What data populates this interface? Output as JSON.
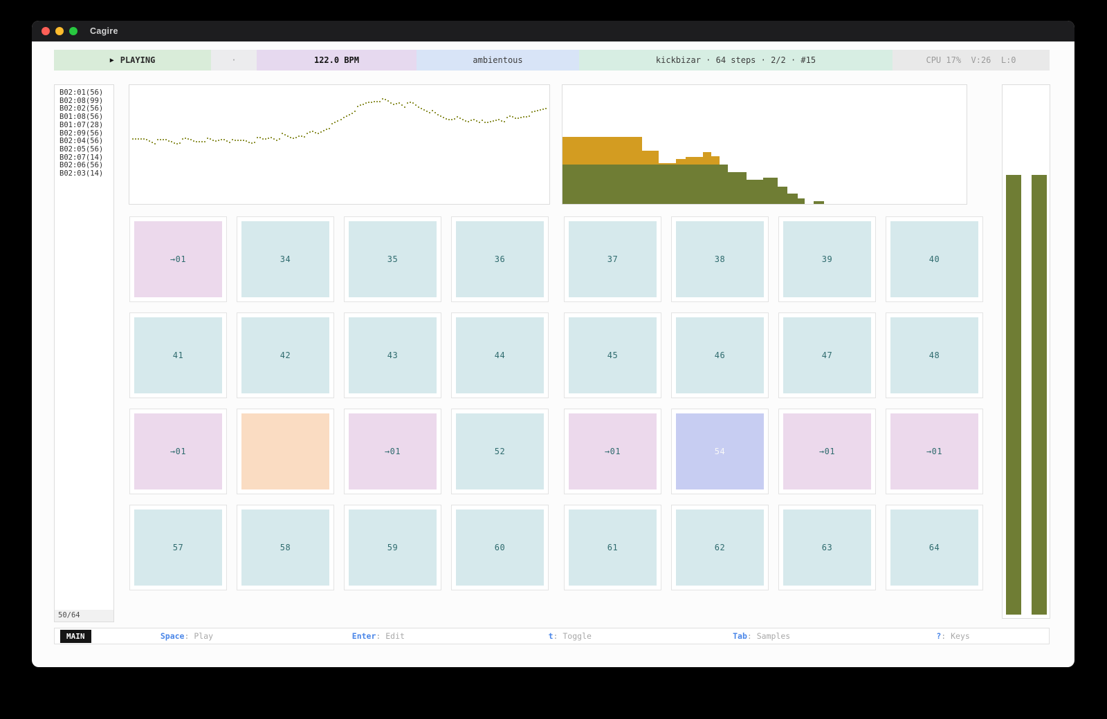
{
  "window": {
    "title": "Cagire"
  },
  "toolbar": {
    "play_glyph": "▶",
    "transport_label": "PLAYING",
    "separator": "·",
    "bpm": "122.0 BPM",
    "scene": "ambientous",
    "pattern_info": "kickbizar · 64 steps · 2/2 · #15",
    "stats": "CPU 17%  V:26  L:0"
  },
  "sidebar": {
    "items": [
      "B02:01(56)",
      "B02:08(99)",
      "B02:02(56)",
      "B01:08(56)",
      "B01:07(28)",
      "B02:09(56)",
      "B02:04(56)",
      "B02:05(56)",
      "B02:07(14)",
      "B02:06(56)",
      "B02:03(14)"
    ],
    "counter": "50/64"
  },
  "chart_data": [
    {
      "id": "sample-walk",
      "type": "scatter",
      "x_range": [
        0,
        1
      ],
      "y_range": [
        0,
        1
      ],
      "point_color": "#8f9335",
      "points": [
        [
          0,
          0.46
        ],
        [
          0.03,
          0.44
        ],
        [
          0.055,
          0.47
        ],
        [
          0.08,
          0.45
        ],
        [
          0.105,
          0.475
        ],
        [
          0.13,
          0.445
        ],
        [
          0.155,
          0.465
        ],
        [
          0.18,
          0.45
        ],
        [
          0.2,
          0.465
        ],
        [
          0.22,
          0.44
        ],
        [
          0.245,
          0.465
        ],
        [
          0.27,
          0.455
        ],
        [
          0.29,
          0.47
        ],
        [
          0.305,
          0.44
        ],
        [
          0.32,
          0.45
        ],
        [
          0.335,
          0.425
        ],
        [
          0.35,
          0.44
        ],
        [
          0.365,
          0.4
        ],
        [
          0.375,
          0.425
        ],
        [
          0.39,
          0.435
        ],
        [
          0.405,
          0.4
        ],
        [
          0.42,
          0.41
        ],
        [
          0.435,
          0.375
        ],
        [
          0.45,
          0.39
        ],
        [
          0.465,
          0.345
        ],
        [
          0.48,
          0.32
        ],
        [
          0.495,
          0.28
        ],
        [
          0.51,
          0.24
        ],
        [
          0.525,
          0.2
        ],
        [
          0.54,
          0.155
        ],
        [
          0.555,
          0.12
        ],
        [
          0.57,
          0.095
        ],
        [
          0.585,
          0.075
        ],
        [
          0.6,
          0.07
        ],
        [
          0.615,
          0.085
        ],
        [
          0.63,
          0.11
        ],
        [
          0.645,
          0.09
        ],
        [
          0.66,
          0.125
        ],
        [
          0.675,
          0.1
        ],
        [
          0.69,
          0.135
        ],
        [
          0.705,
          0.155
        ],
        [
          0.72,
          0.175
        ],
        [
          0.735,
          0.21
        ],
        [
          0.75,
          0.235
        ],
        [
          0.765,
          0.25
        ],
        [
          0.78,
          0.235
        ],
        [
          0.795,
          0.26
        ],
        [
          0.81,
          0.28
        ],
        [
          0.825,
          0.245
        ],
        [
          0.84,
          0.27
        ],
        [
          0.855,
          0.3
        ],
        [
          0.87,
          0.27
        ],
        [
          0.885,
          0.25
        ],
        [
          0.9,
          0.26
        ],
        [
          0.915,
          0.235
        ],
        [
          0.93,
          0.25
        ],
        [
          0.945,
          0.225
        ],
        [
          0.96,
          0.21
        ],
        [
          0.975,
          0.19
        ],
        [
          0.99,
          0.165
        ],
        [
          1,
          0.15
        ]
      ]
    },
    {
      "id": "length-histogram",
      "type": "bar",
      "stacked": true,
      "series_colors": {
        "base": "#6f7d34",
        "top": "#d39c21"
      },
      "bars": [
        {
          "x0": 0.0,
          "x1": 0.197,
          "base": 0.33,
          "top": 0.237
        },
        {
          "x0": 0.197,
          "x1": 0.238,
          "base": 0.33,
          "top": 0.116
        },
        {
          "x0": 0.238,
          "x1": 0.281,
          "base": 0.33,
          "top": 0.012
        },
        {
          "x0": 0.281,
          "x1": 0.304,
          "base": 0.33,
          "top": 0.046
        },
        {
          "x0": 0.304,
          "x1": 0.347,
          "base": 0.33,
          "top": 0.064
        },
        {
          "x0": 0.347,
          "x1": 0.369,
          "base": 0.33,
          "top": 0.104
        },
        {
          "x0": 0.369,
          "x1": 0.389,
          "base": 0.33,
          "top": 0.069
        },
        {
          "x0": 0.389,
          "x1": 0.41,
          "base": 0.33,
          "top": 0
        },
        {
          "x0": 0.41,
          "x1": 0.455,
          "base": 0.266,
          "top": 0
        },
        {
          "x0": 0.455,
          "x1": 0.496,
          "base": 0.202,
          "top": 0
        },
        {
          "x0": 0.496,
          "x1": 0.532,
          "base": 0.22,
          "top": 0
        },
        {
          "x0": 0.532,
          "x1": 0.556,
          "base": 0.145,
          "top": 0
        },
        {
          "x0": 0.556,
          "x1": 0.583,
          "base": 0.087,
          "top": 0
        },
        {
          "x0": 0.583,
          "x1": 0.6,
          "base": 0.046,
          "top": 0
        },
        {
          "x0": 0.6,
          "x1": 0.621,
          "base": 0,
          "top": 0
        },
        {
          "x0": 0.621,
          "x1": 0.647,
          "base": 0.023,
          "top": 0
        }
      ]
    }
  ],
  "grid": {
    "rows": [
      {
        "cells": [
          {
            "label": "→01",
            "type": "pink"
          },
          {
            "label": "34",
            "type": "cyan"
          },
          {
            "label": "35",
            "type": "cyan"
          },
          {
            "label": "36",
            "type": "cyan"
          },
          {
            "label": "37",
            "type": "cyan"
          },
          {
            "label": "38",
            "type": "cyan"
          },
          {
            "label": "39",
            "type": "cyan"
          },
          {
            "label": "40",
            "type": "cyan"
          }
        ]
      },
      {
        "cells": [
          {
            "label": "41",
            "type": "cyan"
          },
          {
            "label": "42",
            "type": "cyan"
          },
          {
            "label": "43",
            "type": "cyan"
          },
          {
            "label": "44",
            "type": "cyan"
          },
          {
            "label": "45",
            "type": "cyan"
          },
          {
            "label": "46",
            "type": "cyan"
          },
          {
            "label": "47",
            "type": "cyan"
          },
          {
            "label": "48",
            "type": "cyan"
          }
        ]
      },
      {
        "cells": [
          {
            "label": "→01",
            "type": "pink"
          },
          {
            "label": "",
            "type": "orange"
          },
          {
            "label": "→01",
            "type": "pink"
          },
          {
            "label": "52",
            "type": "cyan"
          },
          {
            "label": "→01",
            "type": "pink"
          },
          {
            "label": "54",
            "type": "periwinkle"
          },
          {
            "label": "→01",
            "type": "pink"
          },
          {
            "label": "→01",
            "type": "pink"
          }
        ]
      },
      {
        "cells": [
          {
            "label": "57",
            "type": "cyan"
          },
          {
            "label": "58",
            "type": "cyan"
          },
          {
            "label": "59",
            "type": "cyan"
          },
          {
            "label": "60",
            "type": "cyan"
          },
          {
            "label": "61",
            "type": "cyan"
          },
          {
            "label": "62",
            "type": "cyan"
          },
          {
            "label": "63",
            "type": "cyan"
          },
          {
            "label": "64",
            "type": "cyan"
          }
        ]
      }
    ]
  },
  "meters": {
    "levels": [
      0.825,
      0.825
    ]
  },
  "statusbar": {
    "mode": "MAIN",
    "shortcuts": [
      {
        "key": "Space",
        "label": "Play"
      },
      {
        "key": "Enter",
        "label": "Edit"
      },
      {
        "key": "t",
        "label": "Toggle"
      },
      {
        "key": "Tab",
        "label": "Samples"
      },
      {
        "key": "?",
        "label": "Keys"
      }
    ]
  },
  "colors": {
    "traffic_close": "#ff5f57",
    "traffic_min": "#febc2e",
    "traffic_zoom": "#28c840",
    "segment_green": "#d9ecd9",
    "segment_gray": "#ececee",
    "segment_purple": "#e6d9ef",
    "segment_blue": "#d8e4f7",
    "segment_mint": "#d7eee3",
    "segment_gray2": "#e9e9e9",
    "cell_cyan": "#d6e9ec",
    "cell_pink": "#ecd9ec",
    "cell_orange": "#fadcc2",
    "cell_periwinkle": "#c7cdf2",
    "cell_text": "#2f6b6e",
    "cell_text_light": "#f8f8f8",
    "olive": "#6f7d34",
    "gold": "#d39c21",
    "dot": "#8f9335",
    "key_blue": "#4a86e8"
  }
}
